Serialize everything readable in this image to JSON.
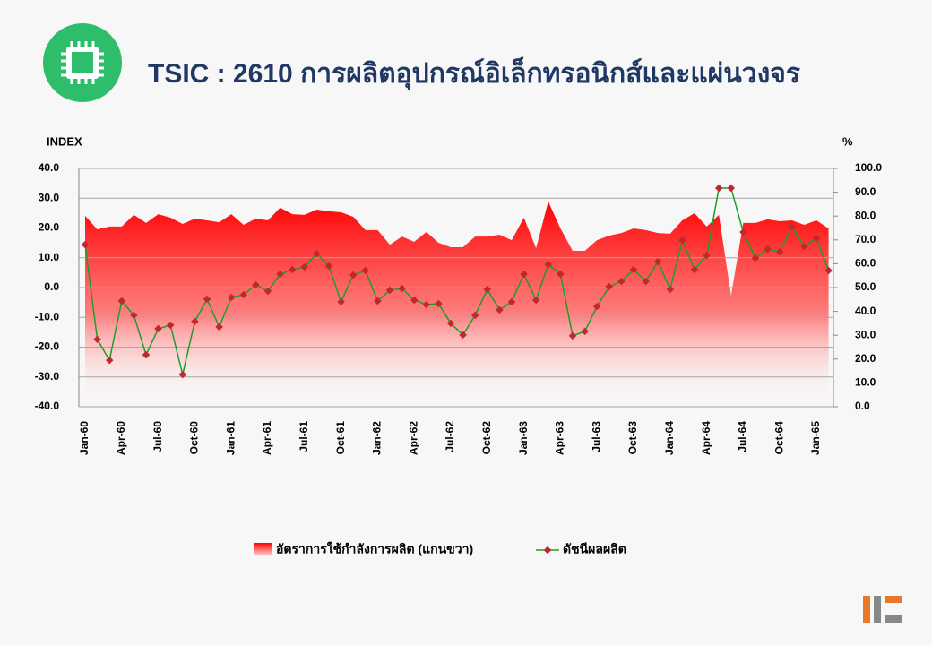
{
  "chart_data": {
    "type": "line",
    "title": "TSIC : 2610 การผลิตอุปกรณ์อิเล็กทรอนิกส์และแผ่นวงจร",
    "y_label": "INDEX",
    "y2_label": "%",
    "categories": [
      "Jan-60",
      null,
      null,
      "Apr-60",
      null,
      null,
      "Jul-60",
      null,
      null,
      "Oct-60",
      null,
      null,
      "Jan-61",
      null,
      null,
      "Apr-61",
      null,
      null,
      "Jul-61",
      null,
      null,
      "Oct-61",
      null,
      null,
      "Jan-62",
      null,
      null,
      "Apr-62",
      null,
      null,
      "Jul-62",
      null,
      null,
      "Oct-62",
      null,
      null,
      "Jan-63",
      null,
      null,
      "Apr-63",
      null,
      null,
      "Jul-63",
      null,
      null,
      "Oct-63",
      null,
      null,
      "Jan-64",
      null,
      null,
      "Apr-64",
      null,
      null,
      "Jul-64",
      null,
      null,
      "Oct-64",
      null,
      null,
      "Jan-65",
      null
    ],
    "series": [
      {
        "name": "อัตราการใช้กำลังการผลิต (แกนขวา)",
        "color": "#ff0000",
        "axis": "y2",
        "type": "area",
        "values": [
          80.1,
          74.4,
          75.6,
          75.6,
          80.5,
          77.1,
          80.8,
          79.3,
          76.7,
          78.9,
          78.2,
          77.4,
          80.8,
          76.3,
          78.9,
          78.2,
          83.5,
          80.8,
          80.5,
          82.7,
          82.0,
          81.6,
          79.7,
          74.1,
          74.1,
          68.0,
          71.4,
          69.2,
          73.3,
          68.8,
          66.9,
          66.9,
          71.4,
          71.4,
          72.2,
          69.9,
          79.3,
          66.5,
          86.1,
          74.8,
          65.4,
          65.4,
          69.9,
          71.8,
          72.9,
          74.8,
          74.1,
          72.9,
          72.6,
          78.2,
          81.2,
          75.6,
          80.5,
          46.6,
          77.1,
          77.1,
          78.6,
          77.8,
          78.2,
          76.3,
          78.2,
          74.8
        ]
      },
      {
        "name": "ดัชนีผลผลิต",
        "color": "#1a9e2a",
        "marker_color": "#c0282d",
        "values": [
          14.4,
          -17.4,
          -24.4,
          -4.5,
          -9.3,
          -22.6,
          -13.8,
          -12.6,
          -29.2,
          -11.4,
          -3.9,
          -13.2,
          -3.3,
          -2.4,
          0.9,
          -1.2,
          4.5,
          6.0,
          6.9,
          11.4,
          7.2,
          -4.8,
          4.2,
          5.7,
          -4.5,
          -0.9,
          -0.3,
          -4.2,
          -5.7,
          -5.4,
          -12.0,
          -15.9,
          -9.3,
          -0.6,
          -7.5,
          -4.8,
          4.5,
          -4.2,
          7.8,
          4.5,
          -16.2,
          -14.7,
          -6.3,
          0.3,
          2.1,
          6.0,
          2.1,
          8.7,
          -0.6,
          15.9,
          6.0,
          10.8,
          33.4,
          33.4,
          18.6,
          9.9,
          12.9,
          12.0,
          20.5,
          13.8,
          16.5,
          5.7
        ]
      }
    ],
    "ylim": [
      -40,
      40
    ],
    "yticks": [
      {
        "value": -40,
        "label": "-40.0"
      },
      {
        "value": -30,
        "label": "-30.0"
      },
      {
        "value": -20,
        "label": "-20.0"
      },
      {
        "value": -10,
        "label": "-10.0"
      },
      {
        "value": 0,
        "label": "0.0"
      },
      {
        "value": 10,
        "label": "10.0"
      },
      {
        "value": 20,
        "label": "20.0"
      },
      {
        "value": 30,
        "label": "30.0"
      },
      {
        "value": 40,
        "label": "40.0"
      }
    ],
    "y2lim": [
      0,
      100
    ],
    "y2ticks": [
      {
        "value": 0,
        "label": "0.0"
      },
      {
        "value": 10,
        "label": "10.0"
      },
      {
        "value": 20,
        "label": "20.0"
      },
      {
        "value": 30,
        "label": "30.0"
      },
      {
        "value": 40,
        "label": "40.0"
      },
      {
        "value": 50,
        "label": "50.0"
      },
      {
        "value": 60,
        "label": "60.0"
      },
      {
        "value": 70,
        "label": "70.0"
      },
      {
        "value": 80,
        "label": "80.0"
      },
      {
        "value": 90,
        "label": "90.0"
      },
      {
        "value": 100,
        "label": "100.0"
      }
    ],
    "grid": true,
    "legend": "bottom"
  }
}
